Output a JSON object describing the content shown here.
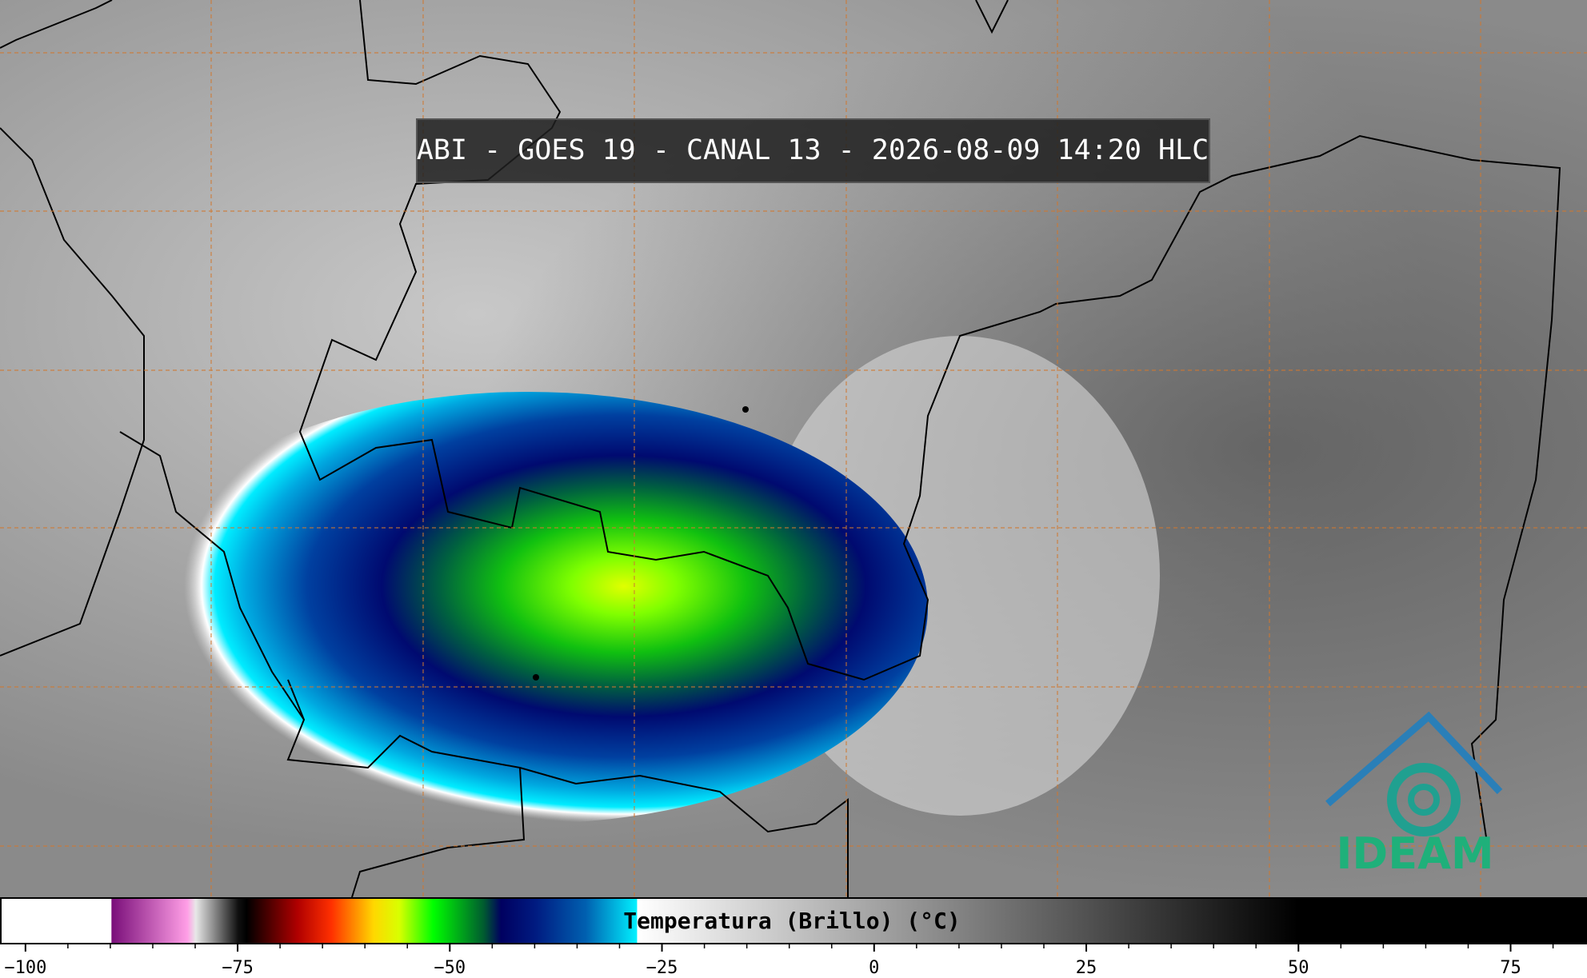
{
  "header": {
    "title": "ABI - GOES 19 - CANAL 13 - 2026-08-09 14:20 HLC"
  },
  "colorbar": {
    "label": "Temperatura (Brillo) (°C)",
    "xlim": [
      -103,
      84
    ],
    "xticks": [
      {
        "value": -100,
        "label": "−100"
      },
      {
        "value": -75,
        "label": "−75"
      },
      {
        "value": -50,
        "label": "−50"
      },
      {
        "value": -25,
        "label": "−25"
      },
      0,
      25,
      50,
      75
    ],
    "minor_xticks": [
      -95,
      -90,
      -85,
      -80,
      -70,
      -65,
      -60,
      -55,
      -45,
      -40,
      -35,
      -30,
      -20,
      -15,
      -10,
      -5,
      5,
      10,
      15,
      20,
      30,
      35,
      40,
      45,
      55,
      60,
      65,
      70,
      80
    ],
    "colormap": [
      {
        "value": -103,
        "color": "#ffffff"
      },
      {
        "value": -90,
        "color": "#ffffff"
      },
      {
        "value": -89.9,
        "color": "#7a0f7a"
      },
      {
        "value": -81,
        "color": "#ff9ee6"
      },
      {
        "value": -80,
        "color": "#e8e8e8"
      },
      {
        "value": -75,
        "color": "#101010"
      },
      {
        "value": -74,
        "color": "#000000"
      },
      {
        "value": -68,
        "color": "#b00000"
      },
      {
        "value": -64,
        "color": "#ff3000"
      },
      {
        "value": -59,
        "color": "#ffd800"
      },
      {
        "value": -56,
        "color": "#d8ff00"
      },
      {
        "value": -52,
        "color": "#00ff00"
      },
      {
        "value": -46,
        "color": "#005a30"
      },
      {
        "value": -44,
        "color": "#000060"
      },
      {
        "value": -40,
        "color": "#001a80"
      },
      {
        "value": -34,
        "color": "#0060b0"
      },
      {
        "value": -28,
        "color": "#00f0ff"
      },
      {
        "value": -27.9,
        "color": "#ffffff"
      },
      {
        "value": 50,
        "color": "#000000"
      },
      {
        "value": 84,
        "color": "#000000"
      }
    ]
  },
  "logo": {
    "text": "IDEAM"
  }
}
